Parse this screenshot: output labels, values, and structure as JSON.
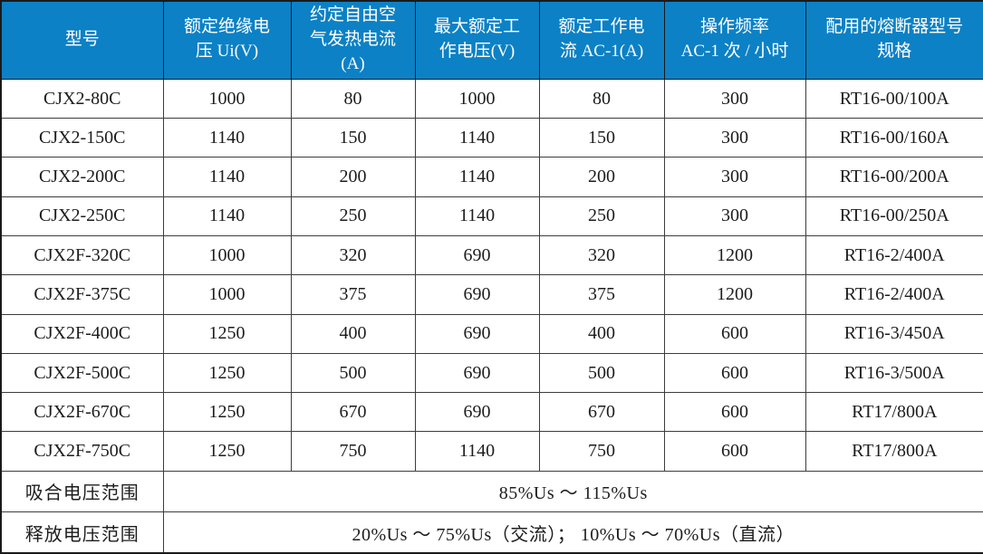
{
  "table": {
    "headers": [
      "型号",
      "额定绝缘电\n压 Ui(V)",
      "约定自由空\n气发热电流\n(A)",
      "最大额定工\n作电压(V)",
      "额定工作电\n流 AC-1(A)",
      "操作频率\nAC-1 次 / 小时",
      "配用的熔断器型号\n规格"
    ],
    "rows": [
      [
        "CJX2-80C",
        "1000",
        "80",
        "1000",
        "80",
        "300",
        "RT16-00/100A"
      ],
      [
        "CJX2-150C",
        "1140",
        "150",
        "1140",
        "150",
        "300",
        "RT16-00/160A"
      ],
      [
        "CJX2-200C",
        "1140",
        "200",
        "1140",
        "200",
        "300",
        "RT16-00/200A"
      ],
      [
        "CJX2-250C",
        "1140",
        "250",
        "1140",
        "250",
        "300",
        "RT16-00/250A"
      ],
      [
        "CJX2F-320C",
        "1000",
        "320",
        "690",
        "320",
        "1200",
        "RT16-2/400A"
      ],
      [
        "CJX2F-375C",
        "1000",
        "375",
        "690",
        "375",
        "1200",
        "RT16-2/400A"
      ],
      [
        "CJX2F-400C",
        "1250",
        "400",
        "690",
        "400",
        "600",
        "RT16-3/450A"
      ],
      [
        "CJX2F-500C",
        "1250",
        "500",
        "690",
        "500",
        "600",
        "RT16-3/500A"
      ],
      [
        "CJX2F-670C",
        "1250",
        "670",
        "690",
        "670",
        "600",
        "RT17/800A"
      ],
      [
        "CJX2F-750C",
        "1250",
        "750",
        "1140",
        "750",
        "600",
        "RT17/800A"
      ]
    ],
    "footer_rows": [
      {
        "label": "吸合电压范围",
        "value": "85%Us ～ 115%Us"
      },
      {
        "label": "释放电压范围",
        "value": "20%Us ～ 75%Us（交流）； 10%Us ～ 70%Us（直流）"
      }
    ],
    "colors": {
      "header_bg": "#0c81c5",
      "header_text": "#ffffff",
      "body_text": "#1c1c1c",
      "border_inner": "#3c3c3c",
      "border_outer": "#1a1a1a"
    }
  }
}
